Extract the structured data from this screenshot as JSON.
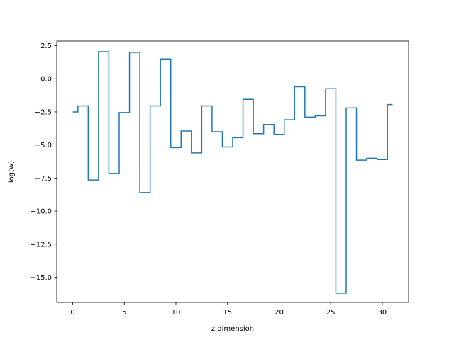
{
  "chart_data": {
    "type": "line",
    "drawstyle": "steps-mid",
    "title": "",
    "xlabel": "z dimension",
    "ylabel": "log(w)",
    "xlim": [
      -1.55,
      32.55
    ],
    "ylim": [
      -16.9,
      2.85
    ],
    "xticks": [
      0,
      5,
      10,
      15,
      20,
      25,
      30
    ],
    "xtick_labels": [
      "0",
      "5",
      "10",
      "15",
      "20",
      "25",
      "30"
    ],
    "yticks": [
      2.5,
      0.0,
      -2.5,
      -5.0,
      -7.5,
      -10.0,
      -12.5,
      -15.0
    ],
    "ytick_labels": [
      "2.5",
      "0.0",
      "−2.5",
      "−5.0",
      "−7.5",
      "−10.0",
      "−12.5",
      "−15.0"
    ],
    "grid": false,
    "series": [
      {
        "color": "#1f77b4",
        "x": [
          0,
          1,
          2,
          3,
          4,
          5,
          6,
          7,
          8,
          9,
          10,
          11,
          12,
          13,
          14,
          15,
          16,
          17,
          18,
          19,
          20,
          21,
          22,
          23,
          24,
          25,
          26,
          27,
          28,
          29,
          30,
          31
        ],
        "y": [
          -2.5,
          -2.05,
          -7.65,
          2.05,
          -7.15,
          -2.55,
          2.0,
          -8.6,
          -2.05,
          1.5,
          -5.2,
          -3.95,
          -5.6,
          -2.05,
          -4.0,
          -5.15,
          -4.45,
          -1.55,
          -4.15,
          -3.45,
          -4.2,
          -3.1,
          -0.6,
          -2.9,
          -2.8,
          -0.75,
          -16.2,
          -2.2,
          -6.15,
          -6.0,
          -6.1,
          -1.95
        ]
      }
    ]
  }
}
